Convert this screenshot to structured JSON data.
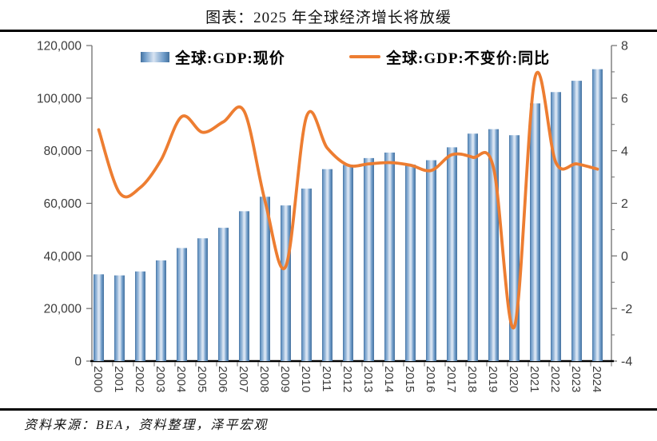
{
  "chart_data": {
    "type": "bar",
    "title": "图表：2025 年全球经济增长将放缓",
    "categories": [
      "2000",
      "2001",
      "2002",
      "2003",
      "2004",
      "2005",
      "2006",
      "2007",
      "2008",
      "2009",
      "2010",
      "2011",
      "2012",
      "2013",
      "2014",
      "2015",
      "2016",
      "2017",
      "2018",
      "2019",
      "2020",
      "2021",
      "2022",
      "2023",
      "2024"
    ],
    "series": [
      {
        "name": "全球:GDP:现价",
        "type": "bar",
        "axis": "left",
        "values": [
          33000,
          32600,
          34100,
          38300,
          43000,
          46700,
          50700,
          57000,
          62500,
          59200,
          65600,
          73000,
          74600,
          77200,
          79300,
          74700,
          76400,
          81300,
          86500,
          88200,
          85900,
          98000,
          102300,
          106600,
          111000
        ]
      },
      {
        "name": "全球:GDP:不变价:同比",
        "type": "line",
        "axis": "right",
        "values": [
          4.8,
          2.4,
          2.6,
          3.65,
          5.3,
          4.7,
          5.1,
          5.5,
          2.1,
          -0.4,
          5.3,
          4.1,
          3.45,
          3.5,
          3.55,
          3.45,
          3.25,
          3.85,
          3.75,
          3.35,
          -2.7,
          6.8,
          3.55,
          3.5,
          3.3
        ]
      }
    ],
    "left_axis": {
      "min": 0,
      "max": 120000,
      "step": 20000,
      "tick_labels": [
        "0",
        "20,000",
        "40,000",
        "60,000",
        "80,000",
        "100,000",
        "120,000"
      ]
    },
    "right_axis": {
      "min": -4,
      "max": 8,
      "major_step": 2,
      "minor_step": 1,
      "tick_labels": [
        "-4",
        "-2",
        "0",
        "2",
        "4",
        "6",
        "8"
      ]
    },
    "grid": false,
    "line_smooth": true,
    "legend_position": "top"
  },
  "legend": {
    "bars_label": "全球:GDP:现价",
    "line_label": "全球:GDP:不变价:同比"
  },
  "source_note": "资料来源：BEA，资料整理，泽平宏观",
  "colors": {
    "bar_dark": "#44719E",
    "bar_mid": "#6F9CC9",
    "bar_pale": "#A9C3DF",
    "bar_light": "#D8E4F2",
    "line": "#ED7D31",
    "axis": "#6E6E6E",
    "x_axis": "#000000",
    "text": "#3B3B3B"
  }
}
